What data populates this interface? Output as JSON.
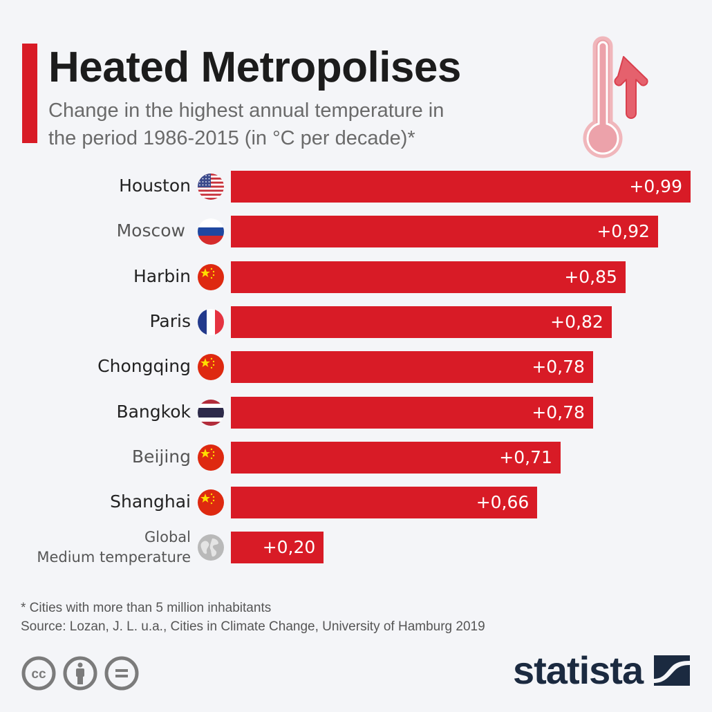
{
  "header": {
    "title": "Heated Metropolises",
    "subtitle_line1": "Change in the highest annual temperature in",
    "subtitle_line2": "the period 1986-2015 (in °C per decade)*",
    "icon": "thermometer-rising-icon"
  },
  "colors": {
    "accent": "#d81b26",
    "text_dark": "#1c1c1c",
    "text_grey": "#6a6a6a",
    "brand": "#1b2a40",
    "background": "#f4f5f8"
  },
  "chart_data": {
    "type": "bar",
    "orientation": "horizontal",
    "title": "Heated Metropolises",
    "subtitle": "Change in the highest annual temperature in the period 1986-2015 (in °C per decade)*",
    "xlabel": "",
    "ylabel": "",
    "xlim": [
      0,
      0.99
    ],
    "grid": false,
    "legend": "none",
    "categories": [
      "Houston",
      "Moscow",
      "Harbin",
      "Paris",
      "Chongqing",
      "Bangkok",
      "Beijing",
      "Shanghai",
      "Global Medium temperature"
    ],
    "values": [
      0.99,
      0.92,
      0.85,
      0.82,
      0.78,
      0.78,
      0.71,
      0.66,
      0.2
    ],
    "data_labels": [
      "+0,99",
      "+0,92",
      "+0,85",
      "+0,82",
      "+0,78",
      "+0,78",
      "+0,71",
      "+0,66",
      "+0,20"
    ],
    "flags": [
      "usa-flag-icon",
      "russia-flag-icon",
      "china-flag-icon",
      "france-flag-icon",
      "china-flag-icon",
      "thailand-flag-icon",
      "china-flag-icon",
      "china-flag-icon",
      "globe-icon"
    ]
  },
  "rows": [
    {
      "label": "Houston",
      "value_label": "+0,99"
    },
    {
      "label": "Moscow",
      "value_label": "+0,92"
    },
    {
      "label": "Harbin",
      "value_label": "+0,85"
    },
    {
      "label": "Paris",
      "value_label": "+0,82"
    },
    {
      "label": "Chongqing",
      "value_label": "+0,78"
    },
    {
      "label": "Bangkok",
      "value_label": "+0,78"
    },
    {
      "label": "Beijing",
      "value_label": "+0,71"
    },
    {
      "label": "Shanghai",
      "value_label": "+0,66"
    },
    {
      "label_line1": "Global",
      "label_line2": "Medium temperature",
      "value_label": "+0,20"
    }
  ],
  "footer": {
    "note": "* Cities with more than 5 million inhabitants",
    "source": "Source: Lozan, J. L. u.a., Cities in Climate Change, University of Hamburg 2019",
    "license_icons": [
      "cc-icon",
      "attribution-icon",
      "no-derivatives-icon"
    ],
    "brand": "statista"
  }
}
